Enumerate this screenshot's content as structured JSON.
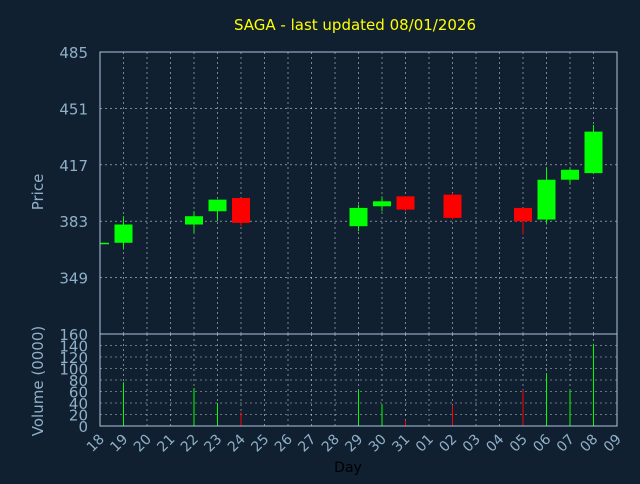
{
  "chart_data": {
    "type": "candlestick",
    "title": "SAGA - last updated 08/01/2026",
    "colors": {
      "background": "#102030",
      "title": "#ffff00",
      "axis_text": "#8fb0c8",
      "axis_line": "#b0c4de",
      "up": "#00ff00",
      "down": "#ff0000"
    },
    "x_categories": [
      "18",
      "19",
      "20",
      "21",
      "22",
      "23",
      "24",
      "25",
      "26",
      "27",
      "28",
      "29",
      "30",
      "31",
      "01",
      "02",
      "03",
      "04",
      "05",
      "06",
      "07",
      "08",
      "09"
    ],
    "xlabel": "Day",
    "price_panel": {
      "ylabel": "Price",
      "ylim": [
        315,
        485
      ],
      "yticks": [
        485,
        451,
        417,
        383,
        349
      ],
      "grid": true
    },
    "volume_panel": {
      "ylabel": "Volume (0000)",
      "ylim": [
        0,
        160
      ],
      "yticks": [
        160,
        140,
        120,
        100,
        80,
        60,
        40,
        20,
        0
      ],
      "grid": true
    },
    "candles": [
      {
        "day": "18",
        "open": 370,
        "high": 370,
        "low": 370,
        "close": 370,
        "volume": 0
      },
      {
        "day": "19",
        "open": 370,
        "high": 386,
        "low": 366,
        "close": 381,
        "volume": 76
      },
      {
        "day": "22",
        "open": 381,
        "high": 389,
        "low": 376,
        "close": 386,
        "volume": 66
      },
      {
        "day": "23",
        "open": 389,
        "high": 396,
        "low": 383,
        "close": 396,
        "volume": 40
      },
      {
        "day": "24",
        "open": 397,
        "high": 397,
        "low": 380,
        "close": 382,
        "volume": 24
      },
      {
        "day": "29",
        "open": 380,
        "high": 393,
        "low": 377,
        "close": 391,
        "volume": 63
      },
      {
        "day": "30",
        "open": 392,
        "high": 398,
        "low": 389,
        "close": 395,
        "volume": 38
      },
      {
        "day": "31",
        "open": 398,
        "high": 398,
        "low": 389,
        "close": 390,
        "volume": 10
      },
      {
        "day": "02",
        "open": 399,
        "high": 400,
        "low": 384,
        "close": 385,
        "volume": 36
      },
      {
        "day": "05",
        "open": 391,
        "high": 391,
        "low": 375,
        "close": 383,
        "volume": 63
      },
      {
        "day": "06",
        "open": 384,
        "high": 415,
        "low": 381,
        "close": 408,
        "volume": 92
      },
      {
        "day": "07",
        "open": 408,
        "high": 415,
        "low": 405,
        "close": 414,
        "volume": 63
      },
      {
        "day": "08",
        "open": 412,
        "high": 441,
        "low": 412,
        "close": 437,
        "volume": 143
      }
    ]
  }
}
